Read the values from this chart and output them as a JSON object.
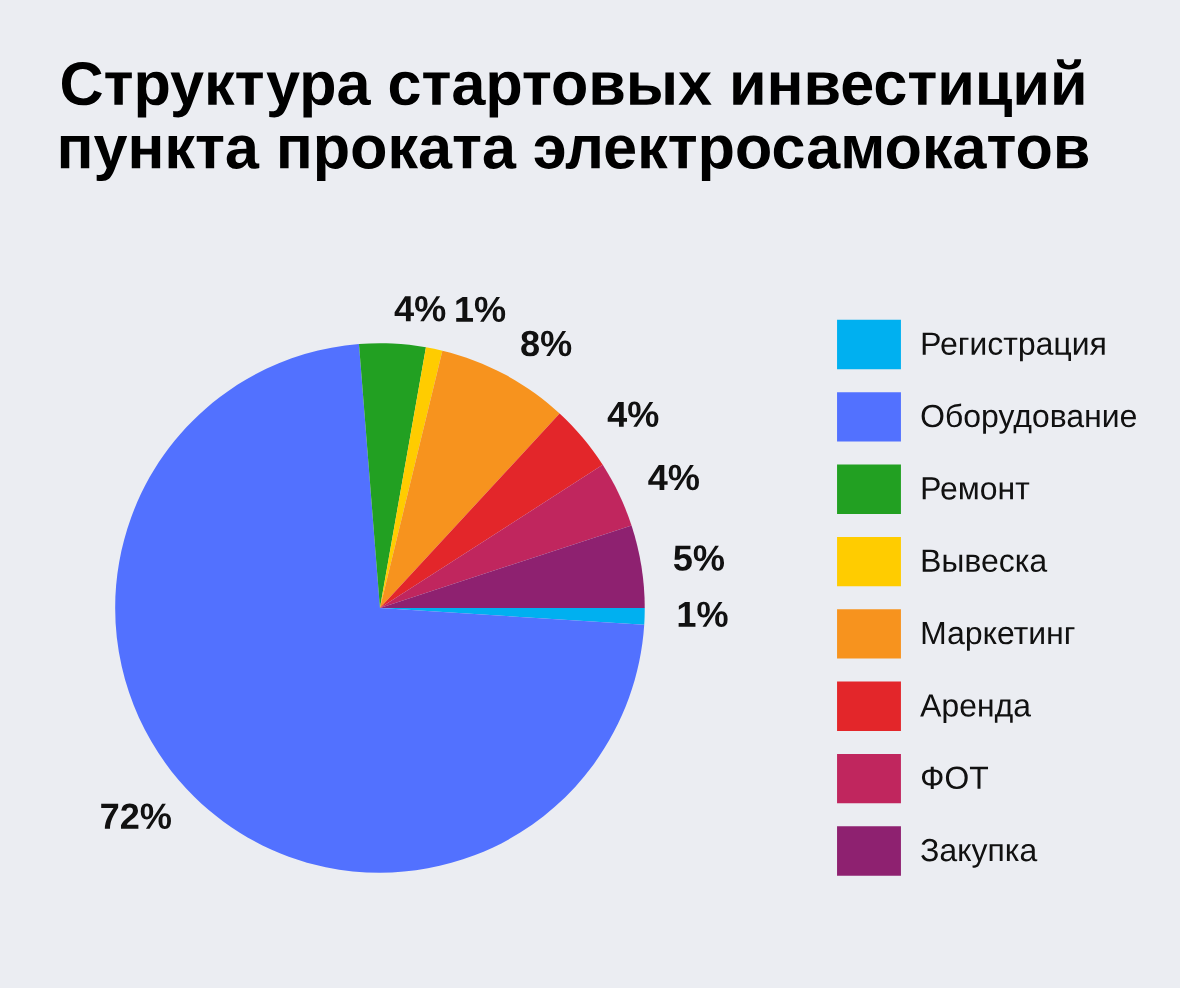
{
  "chart_data": {
    "type": "pie",
    "title": "Структура стартовых инвестиций\nпункта проката электросамокатов",
    "categories": [
      "Регистрация",
      "Оборудование",
      "Ремонт",
      "Вывеска",
      "Маркетинг",
      "Аренда",
      "ФОТ",
      "Закупка"
    ],
    "values": [
      1,
      72,
      4,
      1,
      8,
      4,
      4,
      5
    ],
    "value_labels": [
      "1%",
      "72%",
      "4%",
      "1%",
      "8%",
      "4%",
      "4%",
      "5%"
    ],
    "colors": [
      "#00b0f0",
      "#5271ff",
      "#22a022",
      "#ffcc00",
      "#f7931e",
      "#e3262a",
      "#c0265e",
      "#8e2170"
    ],
    "legend": "right"
  }
}
